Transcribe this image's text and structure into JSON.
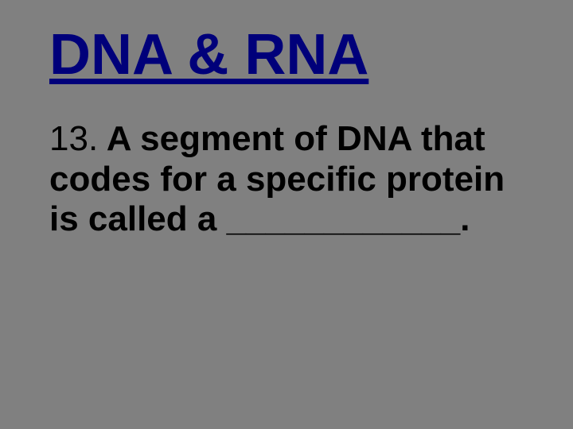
{
  "slide": {
    "title": "DNA & RNA",
    "question_number": "13.",
    "question_text": "A segment of DNA that codes for a specific protein is called a ____________.",
    "title_color": "#00007a",
    "text_color": "#000000",
    "background_color": "#808080",
    "title_fontsize": 72,
    "body_fontsize": 44
  }
}
